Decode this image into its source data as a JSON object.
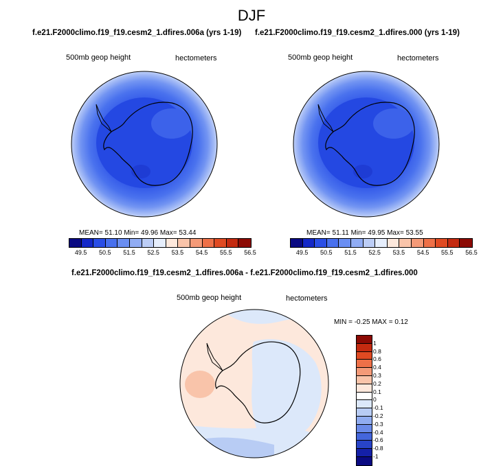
{
  "title": "DJF",
  "panels": [
    {
      "title": "f.e21.F2000climo.f19_f19.cesm2_1.dfires.006a (yrs 1-19)",
      "left_label": "500mb geop height",
      "right_label": "hectometers",
      "stats": "MEAN=  51.10  Min=  49.96  Max=  53.44"
    },
    {
      "title": "f.e21.F2000climo.f19_f19.cesm2_1.dfires.000 (yrs 1-19)",
      "left_label": "500mb geop height",
      "right_label": "hectometers",
      "stats": "MEAN=  51.11  Min=  49.95  Max=  53.55"
    }
  ],
  "horizontal_colorbar": {
    "colors": [
      "#0a0a82",
      "#1428c8",
      "#2a4ee6",
      "#4870ee",
      "#6a8ef2",
      "#90acf4",
      "#bccdf6",
      "#e6eefc",
      "#fde8dc",
      "#f9c4aa",
      "#f49a78",
      "#ee7048",
      "#e04a22",
      "#c42a10",
      "#8c0a04"
    ],
    "tick_labels": [
      "49.5",
      "50.5",
      "51.5",
      "52.5",
      "53.5",
      "54.5",
      "55.5",
      "56.5"
    ]
  },
  "diff_panel": {
    "title": "f.e21.F2000climo.f19_f19.cesm2_1.dfires.006a - f.e21.F2000climo.f19_f19.cesm2_1.dfires.000",
    "left_label": "500mb geop height",
    "right_label": "hectometers",
    "stats": "MIN =  -0.25 MAX =   0.12",
    "colorbar": {
      "colors": [
        "#8c0a04",
        "#c42a10",
        "#e04a22",
        "#ee7048",
        "#f49a78",
        "#f9c4aa",
        "#fde8dc",
        "#ffffff",
        "#dce8fa",
        "#b8ccf4",
        "#90acf0",
        "#6a8ae8",
        "#4466dc",
        "#2844c8",
        "#1420a8",
        "#0a0a82"
      ],
      "tick_labels": [
        "1",
        "0.8",
        "0.6",
        "0.4",
        "0.3",
        "0.2",
        "0.1",
        "0",
        "-0.1",
        "-0.2",
        "-0.3",
        "-0.4",
        "-0.6",
        "-0.8",
        "-1"
      ]
    }
  }
}
